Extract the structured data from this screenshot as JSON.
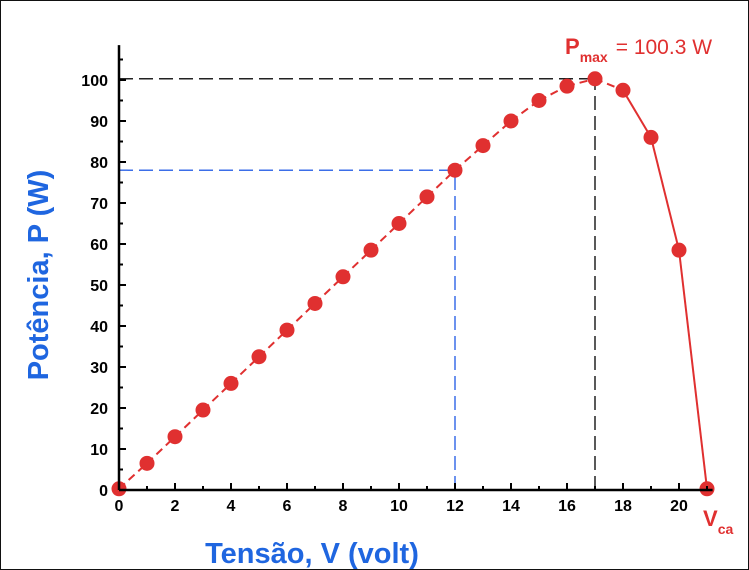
{
  "chart_data": {
    "type": "scatter",
    "xlabel": "Tensão, V (volt)",
    "ylabel": "Potência, P (W)",
    "xlim": [
      0,
      21
    ],
    "ylim": [
      0,
      105
    ],
    "x_ticks": [
      "0",
      "2",
      "4",
      "6",
      "8",
      "10",
      "12",
      "14",
      "16",
      "18",
      "20"
    ],
    "y_ticks": [
      "0",
      "10",
      "20",
      "30",
      "40",
      "50",
      "60",
      "70",
      "80",
      "90",
      "100"
    ],
    "series": [
      {
        "color": "#e03030",
        "points": [
          {
            "x": 0,
            "y": 0.3
          },
          {
            "x": 1,
            "y": 6.5
          },
          {
            "x": 2,
            "y": 13
          },
          {
            "x": 3,
            "y": 19.5
          },
          {
            "x": 4,
            "y": 26
          },
          {
            "x": 5,
            "y": 32.5
          },
          {
            "x": 6,
            "y": 39
          },
          {
            "x": 7,
            "y": 45.5
          },
          {
            "x": 8,
            "y": 52
          },
          {
            "x": 9,
            "y": 58.5
          },
          {
            "x": 10,
            "y": 65
          },
          {
            "x": 11,
            "y": 71.5
          },
          {
            "x": 12,
            "y": 78
          },
          {
            "x": 13,
            "y": 84
          },
          {
            "x": 14,
            "y": 90
          },
          {
            "x": 15,
            "y": 95
          },
          {
            "x": 16,
            "y": 98.5
          },
          {
            "x": 17,
            "y": 100.3
          },
          {
            "x": 18,
            "y": 97.5
          },
          {
            "x": 19,
            "y": 86
          },
          {
            "x": 20,
            "y": 58.5
          },
          {
            "x": 21,
            "y": 0.3
          }
        ]
      }
    ],
    "reference_lines": [
      {
        "x": 17,
        "y": 100.3,
        "color": "#222222"
      },
      {
        "x": 12,
        "y": 78,
        "color": "#3b6ee8"
      }
    ],
    "annotations": {
      "pmax_label": "P",
      "pmax_sub": "max",
      "pmax_value": "= 100.3 W",
      "vca_label": "V",
      "vca_sub": "ca"
    },
    "grid": false
  },
  "colors": {
    "series": "#e03030",
    "axis_title": "#1f66e0",
    "ref_blue": "#3b6ee8",
    "ref_black": "#222222"
  }
}
